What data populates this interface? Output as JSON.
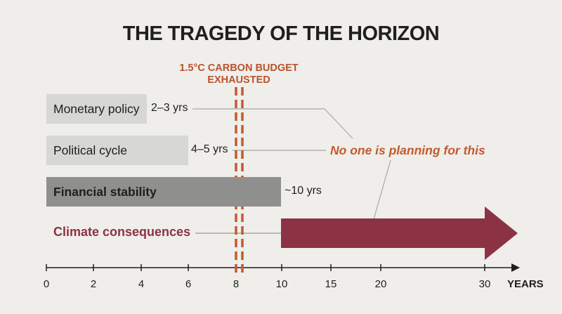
{
  "title": "THE TRAGEDY OF THE HORIZON",
  "budget": {
    "line1": "1.5°C CARBON BUDGET",
    "line2": "EXHAUSTED"
  },
  "bars": [
    {
      "label": "Monetary policy",
      "duration": "2–3 yrs"
    },
    {
      "label": "Political cycle",
      "duration": "4–5 yrs"
    },
    {
      "label": "Financial stability",
      "duration": "~10 yrs"
    }
  ],
  "climate_label": "Climate consequences",
  "callout": "No one is planning for this",
  "axis": {
    "ticks": [
      "0",
      "2",
      "4",
      "6",
      "8",
      "10",
      "15",
      "20",
      "30"
    ],
    "unit": "YEARS"
  },
  "colors": {
    "title": "#1f1f1f",
    "accent_orange": "#c45a2e",
    "climate": "#8b3344",
    "bar_light": "#d7d7d5",
    "bar_dark": "#8f8f8d",
    "background": "#efeeea"
  }
}
